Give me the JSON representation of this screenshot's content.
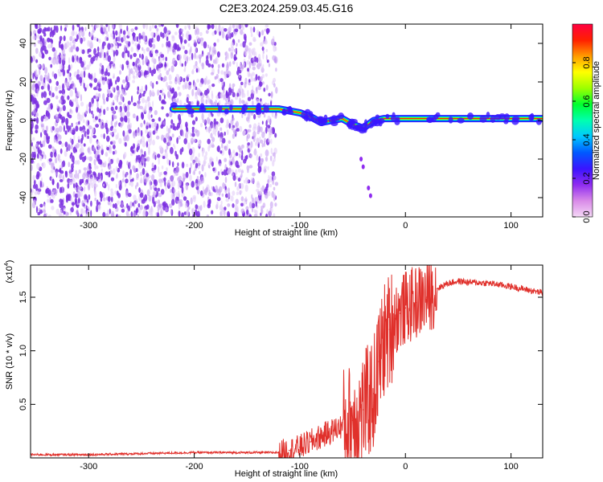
{
  "title": "C2E3.2024.259.03.45.G16",
  "colors": {
    "dots": "#7b2fe0",
    "snr_line": "#e0302b",
    "colorbar": [
      "#f4d8f6",
      "#d98ae8",
      "#8f2cf0",
      "#3a14ff",
      "#0059ff",
      "#00c8ff",
      "#00ffb0",
      "#00ff30",
      "#9cff00",
      "#ffff00",
      "#ff9c00",
      "#ff2000",
      "#ff0040"
    ]
  },
  "chart_data": [
    {
      "type": "heatmap",
      "title": "C2E3.2024.259.03.45.G16",
      "xlabel": "Height of straight line (km)",
      "ylabel": "Frequency (Hz)",
      "xlim": [
        -355,
        130
      ],
      "ylim": [
        -50,
        50
      ],
      "xticks": [
        "-300",
        "-200",
        "-100",
        "0",
        "100"
      ],
      "xtick_values": [
        -300,
        -200,
        -100,
        0,
        100
      ],
      "yticks": [
        "-40",
        "-20",
        "0",
        "20",
        "40"
      ],
      "ytick_values": [
        -40,
        -20,
        0,
        20,
        40
      ],
      "colorbar": {
        "label": "Normalized spectral amplitude",
        "range": [
          0,
          1
        ],
        "ticks": [
          "0.0",
          "0.2",
          "0.4",
          "0.6",
          "0.8"
        ],
        "tick_values": [
          0.0,
          0.2,
          0.4,
          0.6,
          0.8
        ]
      },
      "ridge": {
        "x": [
          -220,
          -180,
          -140,
          -120,
          -100,
          -90,
          -80,
          -70,
          -60,
          -50,
          -40,
          -30,
          -20,
          0,
          40,
          80,
          100,
          130
        ],
        "freq": [
          6,
          6,
          6,
          6,
          4,
          2,
          -1,
          0,
          1,
          -2,
          -4,
          0,
          1,
          1,
          1,
          1,
          1,
          1
        ]
      },
      "noise_region": [
        -355,
        -130
      ],
      "grid": false
    },
    {
      "type": "line",
      "xlabel": "Height of straight line (km)",
      "ylabel": "SNR (10 * v/v)",
      "y_multiplier": "(x10",
      "y_multiplier_exp": "4",
      "xlim": [
        -355,
        130
      ],
      "ylim": [
        0,
        1.8
      ],
      "xticks": [
        "-300",
        "-200",
        "-100",
        "0",
        "100"
      ],
      "xtick_values": [
        -300,
        -200,
        -100,
        0,
        100
      ],
      "yticks": [
        "0.5",
        "1.0",
        "1.5"
      ],
      "ytick_values": [
        0.5,
        1.0,
        1.5
      ],
      "series": [
        {
          "x": [
            -355,
            -300,
            -250,
            -200,
            -150,
            -120,
            -110,
            -100,
            -90,
            -80,
            -70,
            -60,
            -50,
            -40,
            -30,
            -25,
            -20,
            -15,
            -10,
            -5,
            0,
            10,
            20,
            30,
            40,
            50,
            60,
            80,
            100,
            120,
            130
          ],
          "y": [
            0.03,
            0.03,
            0.04,
            0.05,
            0.05,
            0.05,
            0.07,
            0.1,
            0.15,
            0.2,
            0.25,
            0.3,
            0.35,
            0.45,
            0.6,
            0.9,
            1.1,
            1.2,
            1.3,
            1.35,
            1.4,
            1.45,
            1.5,
            1.58,
            1.63,
            1.65,
            1.64,
            1.63,
            1.6,
            1.56,
            1.54
          ]
        }
      ],
      "grid": false
    }
  ]
}
